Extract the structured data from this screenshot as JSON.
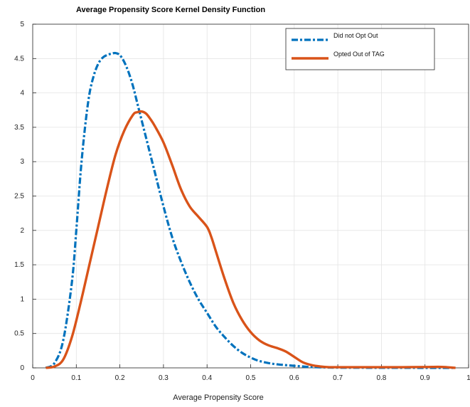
{
  "chart_data": {
    "type": "line",
    "title": "Average Propensity Score Kernel Density Function",
    "xlabel": "Average Propensity Score",
    "ylabel": "",
    "xlim": [
      0,
      1
    ],
    "ylim": [
      0,
      5
    ],
    "xticks": [
      "0",
      "0.1",
      "0.2",
      "0.3",
      "0.4",
      "0.5",
      "0.6",
      "0.7",
      "0.8",
      "0.9",
      "1"
    ],
    "yticks": [
      "0",
      "0.5",
      "1",
      "1.5",
      "2",
      "2.5",
      "3",
      "3.5",
      "4",
      "4.5",
      "5"
    ],
    "grid": true,
    "legend": "top-right",
    "series": [
      {
        "name": "Did not Opt Out",
        "color": "#0072BD",
        "style": "dash-dot",
        "x": [
          0.03,
          0.05,
          0.07,
          0.09,
          0.1,
          0.11,
          0.12,
          0.13,
          0.14,
          0.15,
          0.16,
          0.17,
          0.18,
          0.19,
          0.2,
          0.21,
          0.22,
          0.23,
          0.24,
          0.25,
          0.26,
          0.27,
          0.28,
          0.3,
          0.32,
          0.34,
          0.36,
          0.38,
          0.4,
          0.42,
          0.44,
          0.46,
          0.48,
          0.5,
          0.52,
          0.55,
          0.58,
          0.6,
          0.63,
          0.65,
          0.68,
          0.7,
          0.75,
          0.8,
          0.85,
          0.9,
          0.95,
          0.97
        ],
        "y": [
          0.0,
          0.07,
          0.4,
          1.25,
          2.0,
          2.85,
          3.5,
          3.98,
          4.25,
          4.42,
          4.51,
          4.55,
          4.57,
          4.58,
          4.55,
          4.45,
          4.3,
          4.1,
          3.85,
          3.6,
          3.35,
          3.1,
          2.85,
          2.35,
          1.9,
          1.55,
          1.25,
          1.0,
          0.8,
          0.6,
          0.45,
          0.32,
          0.22,
          0.15,
          0.1,
          0.06,
          0.04,
          0.03,
          0.015,
          0.01,
          0.005,
          0.003,
          0.002,
          0.001,
          0.001,
          0.0,
          0.0,
          0.0
        ]
      },
      {
        "name": "Opted Out of TAG",
        "color": "#D95319",
        "style": "solid",
        "x": [
          0.03,
          0.05,
          0.07,
          0.09,
          0.11,
          0.13,
          0.15,
          0.17,
          0.19,
          0.21,
          0.23,
          0.24,
          0.25,
          0.26,
          0.27,
          0.28,
          0.3,
          0.32,
          0.34,
          0.36,
          0.38,
          0.4,
          0.41,
          0.42,
          0.44,
          0.46,
          0.48,
          0.5,
          0.52,
          0.54,
          0.56,
          0.58,
          0.6,
          0.62,
          0.64,
          0.66,
          0.68,
          0.7,
          0.75,
          0.8,
          0.85,
          0.9,
          0.93,
          0.95,
          0.97
        ],
        "y": [
          0.0,
          0.02,
          0.12,
          0.45,
          0.95,
          1.5,
          2.05,
          2.6,
          3.1,
          3.45,
          3.68,
          3.72,
          3.73,
          3.7,
          3.62,
          3.52,
          3.28,
          2.95,
          2.6,
          2.35,
          2.2,
          2.05,
          1.9,
          1.7,
          1.3,
          0.95,
          0.7,
          0.52,
          0.4,
          0.33,
          0.29,
          0.24,
          0.16,
          0.08,
          0.04,
          0.02,
          0.01,
          0.01,
          0.01,
          0.01,
          0.01,
          0.012,
          0.015,
          0.01,
          0.0
        ]
      }
    ]
  }
}
